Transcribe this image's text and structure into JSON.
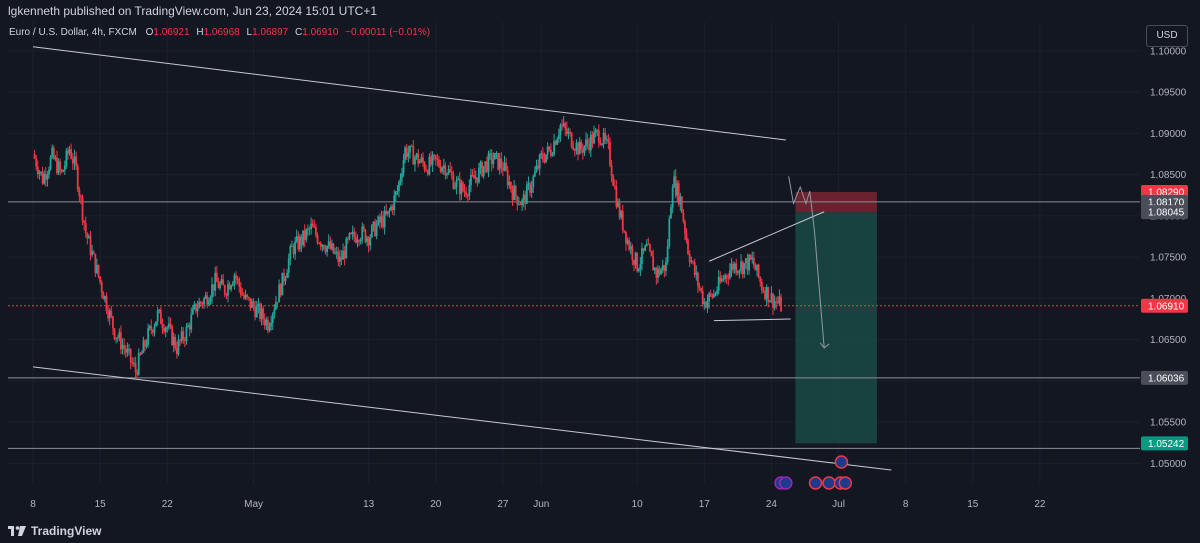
{
  "header": {
    "published": "lgkenneth published on TradingView.com, Jun 23, 2024 15:01 UTC+1"
  },
  "legend": {
    "symbol": "Euro / U.S. Dollar, 4h, FXCM",
    "o_label": "O",
    "o_value": "1.06921",
    "h_label": "H",
    "h_value": "1.06968",
    "l_label": "L",
    "l_value": "1.06897",
    "c_label": "C",
    "c_value": "1.06910",
    "change": "−0.00011 (−0.01%)"
  },
  "currency_button": "USD",
  "footer": {
    "brand": "TradingView"
  },
  "colors": {
    "background": "#131722",
    "up": "#26a69a",
    "down": "#f23645",
    "target_zone": "#1a4a45",
    "stop_zone": "#7a2530",
    "price_line": "#f23645"
  },
  "chart_data": {
    "type": "candlestick",
    "symbol": "Euro / U.S. Dollar",
    "timeframe": "4h",
    "ylim": [
      1.0475,
      1.1035
    ],
    "y_ticks": [
      "1.10000",
      "1.09500",
      "1.09000",
      "1.08500",
      "1.08000",
      "1.07500",
      "1.07000",
      "1.06500",
      "1.06000",
      "1.05500",
      "1.05000"
    ],
    "x_ticks": [
      {
        "label": "8",
        "x": 0
      },
      {
        "label": "15",
        "x": 7
      },
      {
        "label": "22",
        "x": 14
      },
      {
        "label": "May",
        "x": 23
      },
      {
        "label": "13",
        "x": 35
      },
      {
        "label": "20",
        "x": 42
      },
      {
        "label": "27",
        "x": 49
      },
      {
        "label": "Jun",
        "x": 53
      },
      {
        "label": "10",
        "x": 63
      },
      {
        "label": "17",
        "x": 70
      },
      {
        "label": "24",
        "x": 77
      },
      {
        "label": "Jul",
        "x": 84
      },
      {
        "label": "8",
        "x": 91
      },
      {
        "label": "15",
        "x": 98
      },
      {
        "label": "22",
        "x": 105
      }
    ],
    "x_range": [
      0,
      109.4
    ],
    "closes": [
      {
        "x": 0,
        "y": 1.0875
      },
      {
        "x": 1,
        "y": 1.0845
      },
      {
        "x": 2,
        "y": 1.0872
      },
      {
        "x": 3,
        "y": 1.085
      },
      {
        "x": 3.8,
        "y": 1.0882
      },
      {
        "x": 4.5,
        "y": 1.0855
      },
      {
        "x": 5.5,
        "y": 1.078
      },
      {
        "x": 6.5,
        "y": 1.074
      },
      {
        "x": 7.5,
        "y": 1.07
      },
      {
        "x": 8.5,
        "y": 1.066
      },
      {
        "x": 9.5,
        "y": 1.064
      },
      {
        "x": 10.7,
        "y": 1.0612
      },
      {
        "x": 12,
        "y": 1.0655
      },
      {
        "x": 13,
        "y": 1.068
      },
      {
        "x": 14,
        "y": 1.0665
      },
      {
        "x": 15,
        "y": 1.064
      },
      {
        "x": 16,
        "y": 1.066
      },
      {
        "x": 17,
        "y": 1.069
      },
      {
        "x": 18,
        "y": 1.07
      },
      {
        "x": 19,
        "y": 1.072
      },
      {
        "x": 20,
        "y": 1.071
      },
      {
        "x": 21,
        "y": 1.073
      },
      {
        "x": 22,
        "y": 1.07
      },
      {
        "x": 23,
        "y": 1.069
      },
      {
        "x": 24.5,
        "y": 1.067
      },
      {
        "x": 26,
        "y": 1.072
      },
      {
        "x": 27,
        "y": 1.076
      },
      {
        "x": 28,
        "y": 1.077
      },
      {
        "x": 29,
        "y": 1.0785
      },
      {
        "x": 30,
        "y": 1.077
      },
      {
        "x": 31,
        "y": 1.076
      },
      {
        "x": 32,
        "y": 1.0745
      },
      {
        "x": 33,
        "y": 1.077
      },
      {
        "x": 34,
        "y": 1.078
      },
      {
        "x": 35,
        "y": 1.0775
      },
      {
        "x": 36,
        "y": 1.079
      },
      {
        "x": 37,
        "y": 1.08
      },
      {
        "x": 38,
        "y": 1.083
      },
      {
        "x": 38.8,
        "y": 1.088
      },
      {
        "x": 40,
        "y": 1.087
      },
      {
        "x": 41,
        "y": 1.086
      },
      {
        "x": 42,
        "y": 1.0865
      },
      {
        "x": 43,
        "y": 1.086
      },
      {
        "x": 44,
        "y": 1.084
      },
      {
        "x": 45,
        "y": 1.083
      },
      {
        "x": 46,
        "y": 1.0845
      },
      {
        "x": 47,
        "y": 1.086
      },
      {
        "x": 48,
        "y": 1.087
      },
      {
        "x": 49,
        "y": 1.086
      },
      {
        "x": 50,
        "y": 1.083
      },
      {
        "x": 51,
        "y": 1.0815
      },
      {
        "x": 52,
        "y": 1.084
      },
      {
        "x": 53,
        "y": 1.087
      },
      {
        "x": 54,
        "y": 1.088
      },
      {
        "x": 55,
        "y": 1.091
      },
      {
        "x": 56,
        "y": 1.0895
      },
      {
        "x": 57,
        "y": 1.088
      },
      {
        "x": 58,
        "y": 1.089
      },
      {
        "x": 59,
        "y": 1.09
      },
      {
        "x": 60,
        "y": 1.088
      },
      {
        "x": 61,
        "y": 1.081
      },
      {
        "x": 62,
        "y": 1.077
      },
      {
        "x": 63,
        "y": 1.074
      },
      {
        "x": 64,
        "y": 1.076
      },
      {
        "x": 65,
        "y": 1.073
      },
      {
        "x": 66,
        "y": 1.074
      },
      {
        "x": 66.7,
        "y": 1.0845
      },
      {
        "x": 67.5,
        "y": 1.082
      },
      {
        "x": 68.3,
        "y": 1.076
      },
      {
        "x": 69,
        "y": 1.073
      },
      {
        "x": 70,
        "y": 1.0695
      },
      {
        "x": 71,
        "y": 1.0705
      },
      {
        "x": 72,
        "y": 1.0725
      },
      {
        "x": 73,
        "y": 1.074
      },
      {
        "x": 74,
        "y": 1.074
      },
      {
        "x": 75,
        "y": 1.0745
      },
      {
        "x": 76,
        "y": 1.0715
      },
      {
        "x": 77,
        "y": 1.07
      },
      {
        "x": 78,
        "y": 1.0691
      }
    ],
    "current_price": {
      "value": 1.0691,
      "label": "1.06910"
    },
    "price_labels": [
      {
        "value": 1.0829,
        "label": "1.08290",
        "role": "stop"
      },
      {
        "value": 1.0817,
        "label": "1.08170",
        "role": "entry-hint"
      },
      {
        "value": 1.08045,
        "label": "1.08045",
        "role": "entry"
      },
      {
        "value": 1.0691,
        "label": "1.06910",
        "role": "current"
      },
      {
        "value": 1.06036,
        "label": "1.06036",
        "role": "level"
      },
      {
        "value": 1.05242,
        "label": "1.05242",
        "role": "target"
      }
    ],
    "horizontal_levels": [
      1.0817,
      1.06036,
      1.05182
    ],
    "trendlines": [
      {
        "name": "upper channel",
        "points": [
          [
            0,
            1.1005
          ],
          [
            78.5,
            1.0892
          ]
        ]
      },
      {
        "name": "lower channel",
        "points": [
          [
            0,
            1.0617
          ],
          [
            89.5,
            1.0492
          ]
        ]
      },
      {
        "name": "wedge upper",
        "points": [
          [
            70.5,
            1.0745
          ],
          [
            82.5,
            1.0805
          ]
        ]
      },
      {
        "name": "wedge lower",
        "points": [
          [
            71,
            1.0673
          ],
          [
            79,
            1.0675
          ]
        ]
      }
    ],
    "position": {
      "type": "short",
      "x_start": 79.5,
      "x_end": 88,
      "entry": 1.08045,
      "stop": 1.0829,
      "target": 1.05242
    },
    "projection": [
      [
        78.8,
        1.0848
      ],
      [
        79.3,
        1.0815
      ],
      [
        80,
        1.0835
      ],
      [
        80.6,
        1.0815
      ],
      [
        81,
        1.083
      ],
      [
        81.5,
        1.078
      ],
      [
        82.5,
        1.064
      ]
    ],
    "event_markers": [
      {
        "x": 78,
        "row": 0
      },
      {
        "x": 78.5,
        "row": 0
      },
      {
        "x": 81.6,
        "row": 0
      },
      {
        "x": 83,
        "row": 0
      },
      {
        "x": 84.2,
        "row": 0
      },
      {
        "x": 84.7,
        "row": 0
      },
      {
        "x": 84.3,
        "row": -1
      }
    ]
  }
}
